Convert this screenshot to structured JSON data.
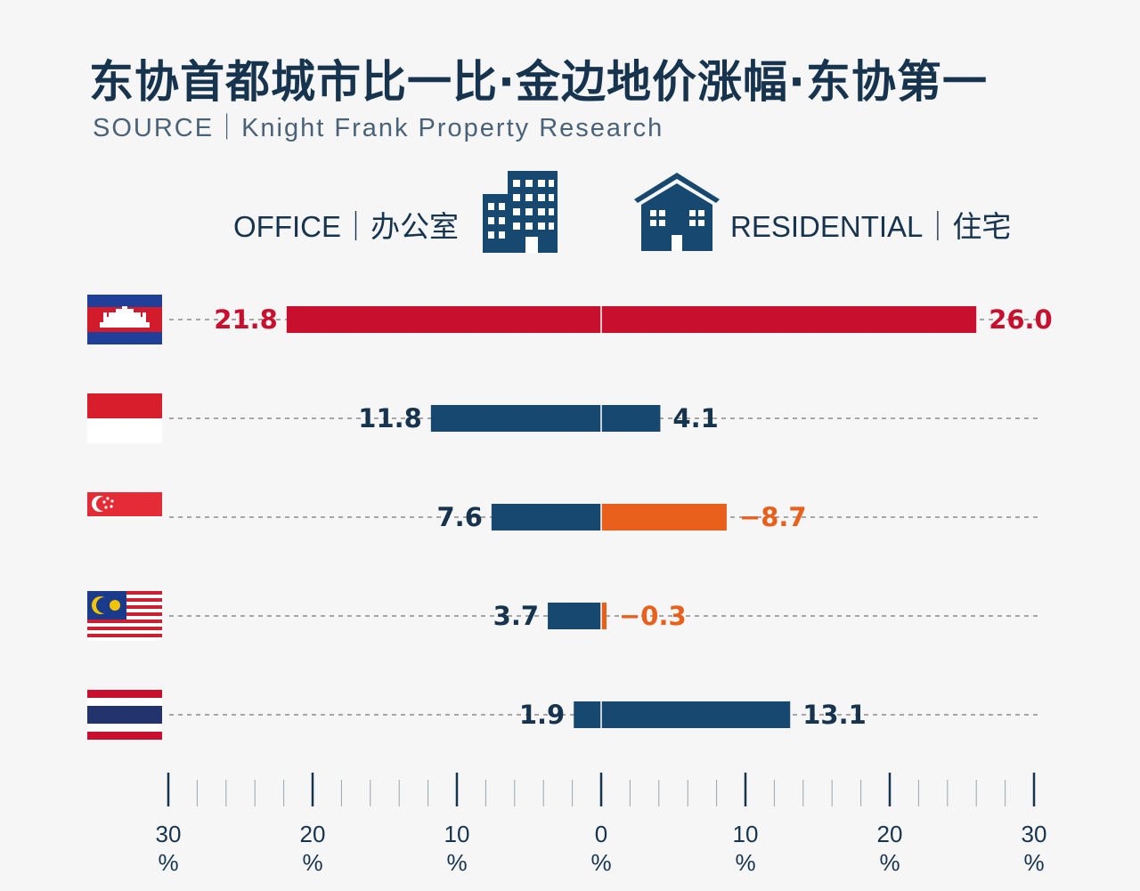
{
  "title": "东协首都城市比一比·金边地价涨幅·东协第一",
  "source": "SOURCE｜Knight Frank Property Research",
  "legend": {
    "office_label": "OFFICE｜办公室",
    "residential_label": "RESIDENTIAL｜住宅",
    "office_icon": "office-building-icon",
    "residential_icon": "house-icon"
  },
  "colors": {
    "navy": "#17486f",
    "red": "#c8102e",
    "orange": "#e8601c",
    "text_dark": "#17344f"
  },
  "chart_data": {
    "type": "bar",
    "orientation": "horizontal-diverging",
    "categories": [
      "Cambodia",
      "Indonesia",
      "Singapore",
      "Malaysia",
      "Thailand"
    ],
    "category_icons": [
      "cambodia-flag-icon",
      "indonesia-flag-icon",
      "singapore-flag-icon",
      "malaysia-flag-icon",
      "thailand-flag-icon"
    ],
    "series": [
      {
        "name": "OFFICE｜办公室",
        "side": "left",
        "values": [
          21.8,
          11.8,
          7.6,
          3.7,
          1.9
        ],
        "labels": [
          "21.8",
          "11.8",
          "7.6",
          "3.7",
          "1.9"
        ]
      },
      {
        "name": "RESIDENTIAL｜住宅",
        "side": "right",
        "values": [
          26.0,
          4.1,
          -8.7,
          -0.3,
          13.1
        ],
        "labels": [
          "26.0",
          "4.1",
          "−8.7",
          "−0.3",
          "13.1"
        ]
      }
    ],
    "bar_colors": [
      "red",
      "navy",
      "navy",
      "navy",
      "navy"
    ],
    "negative_color": "orange",
    "axis": {
      "range": [
        -30,
        30
      ],
      "ticks": [
        "30",
        "20",
        "10",
        "0",
        "10",
        "20",
        "30"
      ],
      "unit": "%"
    }
  }
}
